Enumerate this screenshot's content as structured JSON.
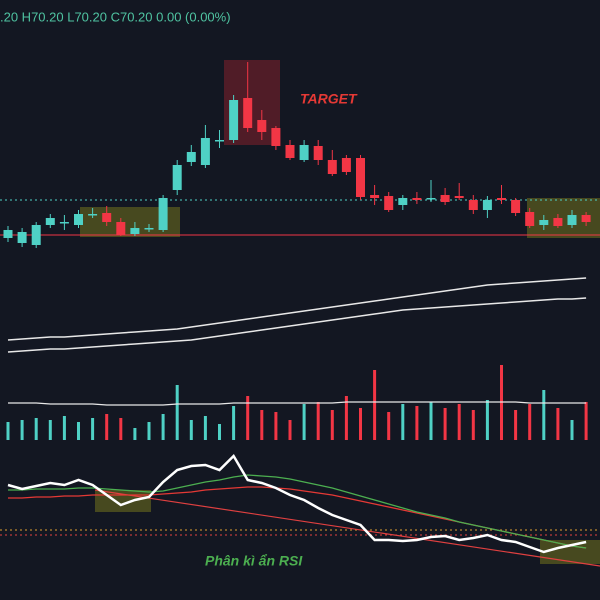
{
  "chart_data": [
    {
      "type": "candlestick",
      "header": ".20 H70.20 L70.20 C70.20 0.00 (0.00%)",
      "annotation": "TARGET",
      "categories": [
        null,
        null,
        null,
        null,
        null,
        null,
        null,
        null,
        null,
        null,
        null,
        null,
        null,
        null,
        null,
        null,
        null,
        null,
        null,
        null,
        null,
        null,
        null,
        null,
        null,
        null,
        null,
        null,
        null,
        null,
        null,
        null,
        null,
        null,
        null,
        null,
        null,
        null,
        null,
        null,
        null,
        null
      ],
      "open": [
        22,
        17,
        15,
        35,
        38,
        35,
        46,
        47,
        38,
        26,
        32,
        30,
        70,
        98,
        95,
        120,
        120,
        162,
        140,
        132,
        115,
        100,
        114,
        100,
        102,
        102,
        65,
        64,
        55,
        62,
        62,
        65,
        64,
        60,
        50,
        62,
        60,
        48,
        35,
        42,
        35,
        45
      ],
      "high": [
        34,
        32,
        38,
        46,
        45,
        50,
        52,
        54,
        42,
        38,
        36,
        65,
        100,
        115,
        135,
        130,
        165,
        198,
        150,
        134,
        120,
        120,
        120,
        110,
        105,
        105,
        75,
        68,
        65,
        68,
        80,
        72,
        77,
        65,
        64,
        75,
        62,
        52,
        45,
        46,
        50,
        48
      ],
      "low": [
        18,
        13,
        12,
        32,
        30,
        32,
        42,
        34,
        24,
        24,
        28,
        28,
        65,
        94,
        92,
        112,
        117,
        128,
        120,
        110,
        100,
        98,
        95,
        84,
        85,
        60,
        55,
        48,
        50,
        56,
        58,
        55,
        60,
        46,
        42,
        56,
        44,
        32,
        30,
        32,
        32,
        34
      ],
      "close": [
        30,
        28,
        35,
        42,
        38,
        46,
        46,
        38,
        25,
        32,
        32,
        62,
        95,
        108,
        122,
        120,
        160,
        132,
        128,
        114,
        102,
        115,
        100,
        86,
        88,
        63,
        62,
        50,
        62,
        60,
        62,
        58,
        62,
        50,
        60,
        60,
        47,
        34,
        40,
        34,
        45,
        38
      ],
      "up_color": "#4fd1c5",
      "down_color": "#f23645",
      "lines": [
        {
          "color": "#e8e8e8",
          "values": [
            -80,
            -79,
            -78,
            -77,
            -77,
            -76,
            -75,
            -74,
            -73,
            -72,
            -71,
            -70,
            -69,
            -67,
            -65,
            -63,
            -61,
            -59,
            -57,
            -55,
            -53,
            -51,
            -49,
            -47,
            -45,
            -43,
            -41,
            -39,
            -37,
            -35,
            -33,
            -31,
            -29,
            -27,
            -25,
            -24,
            -23,
            -22,
            -21,
            -20,
            -19,
            -18
          ]
        },
        {
          "color": "#e8e8e8",
          "values": [
            -92,
            -91,
            -90,
            -89,
            -89,
            -88,
            -87,
            -86,
            -85,
            -84,
            -83,
            -82,
            -81,
            -80,
            -78,
            -76,
            -74,
            -72,
            -70,
            -68,
            -66,
            -64,
            -62,
            -60,
            -58,
            -56,
            -54,
            -52,
            -50,
            -49,
            -48,
            -47,
            -46,
            -45,
            -44,
            -43,
            -42,
            -41,
            -40,
            -39,
            -39,
            -38
          ]
        }
      ],
      "hlines": [
        {
          "value": 60,
          "color": "#4fd1c5"
        },
        {
          "value": 25,
          "color": "#f23645"
        }
      ],
      "ylim": [
        -100,
        260
      ]
    },
    {
      "type": "volume",
      "values": [
        18,
        20,
        22,
        20,
        24,
        18,
        22,
        26,
        22,
        12,
        18,
        26,
        55,
        20,
        24,
        16,
        34,
        44,
        30,
        28,
        20,
        36,
        38,
        30,
        44,
        32,
        70,
        28,
        36,
        34,
        38,
        32,
        36,
        30,
        40,
        75,
        30,
        36,
        50,
        32,
        20,
        38
      ],
      "ma": [
        37,
        37,
        37,
        36,
        36,
        36,
        36,
        35,
        35,
        35,
        35,
        35,
        36,
        36,
        36,
        36,
        37,
        37,
        37,
        37,
        37,
        37,
        37,
        37,
        38,
        38,
        38,
        38,
        38,
        38,
        38,
        38,
        38,
        38,
        38,
        38,
        38,
        37,
        37,
        37,
        37,
        37
      ],
      "ma_color": "#e8e8e8",
      "ylim": [
        0,
        80
      ]
    },
    {
      "type": "rsi",
      "annotation": "Phân kì ẩn RSI",
      "series": [
        {
          "color": "#ffffff",
          "values": [
            75,
            71,
            74,
            77,
            75,
            80,
            75,
            65,
            55,
            60,
            63,
            78,
            90,
            94,
            95,
            90,
            104,
            80,
            77,
            72,
            65,
            60,
            52,
            45,
            40,
            35,
            20,
            20,
            19,
            20,
            23,
            24,
            20,
            22,
            25,
            20,
            18,
            13,
            8,
            12,
            15,
            18
          ]
        },
        {
          "color": "#4caf50",
          "values": [
            70,
            70,
            71,
            71,
            71,
            72,
            72,
            71,
            70,
            69,
            68,
            69,
            72,
            75,
            78,
            80,
            83,
            85,
            84,
            83,
            81,
            78,
            75,
            72,
            68,
            64,
            60,
            56,
            52,
            48,
            45,
            42,
            38,
            35,
            32,
            29,
            26,
            23,
            20,
            17,
            14,
            12
          ]
        },
        {
          "color": "#e53935",
          "values": [
            62,
            62,
            63,
            63,
            64,
            64,
            65,
            65,
            65,
            65,
            65,
            66,
            67,
            68,
            70,
            71,
            72,
            73,
            73,
            72,
            71,
            69,
            67,
            65,
            62,
            59,
            56,
            53,
            50,
            47,
            44,
            41,
            38,
            35,
            32,
            29,
            26,
            23,
            20,
            17,
            14,
            12
          ]
        }
      ],
      "ylim": [
        0,
        110
      ]
    }
  ]
}
